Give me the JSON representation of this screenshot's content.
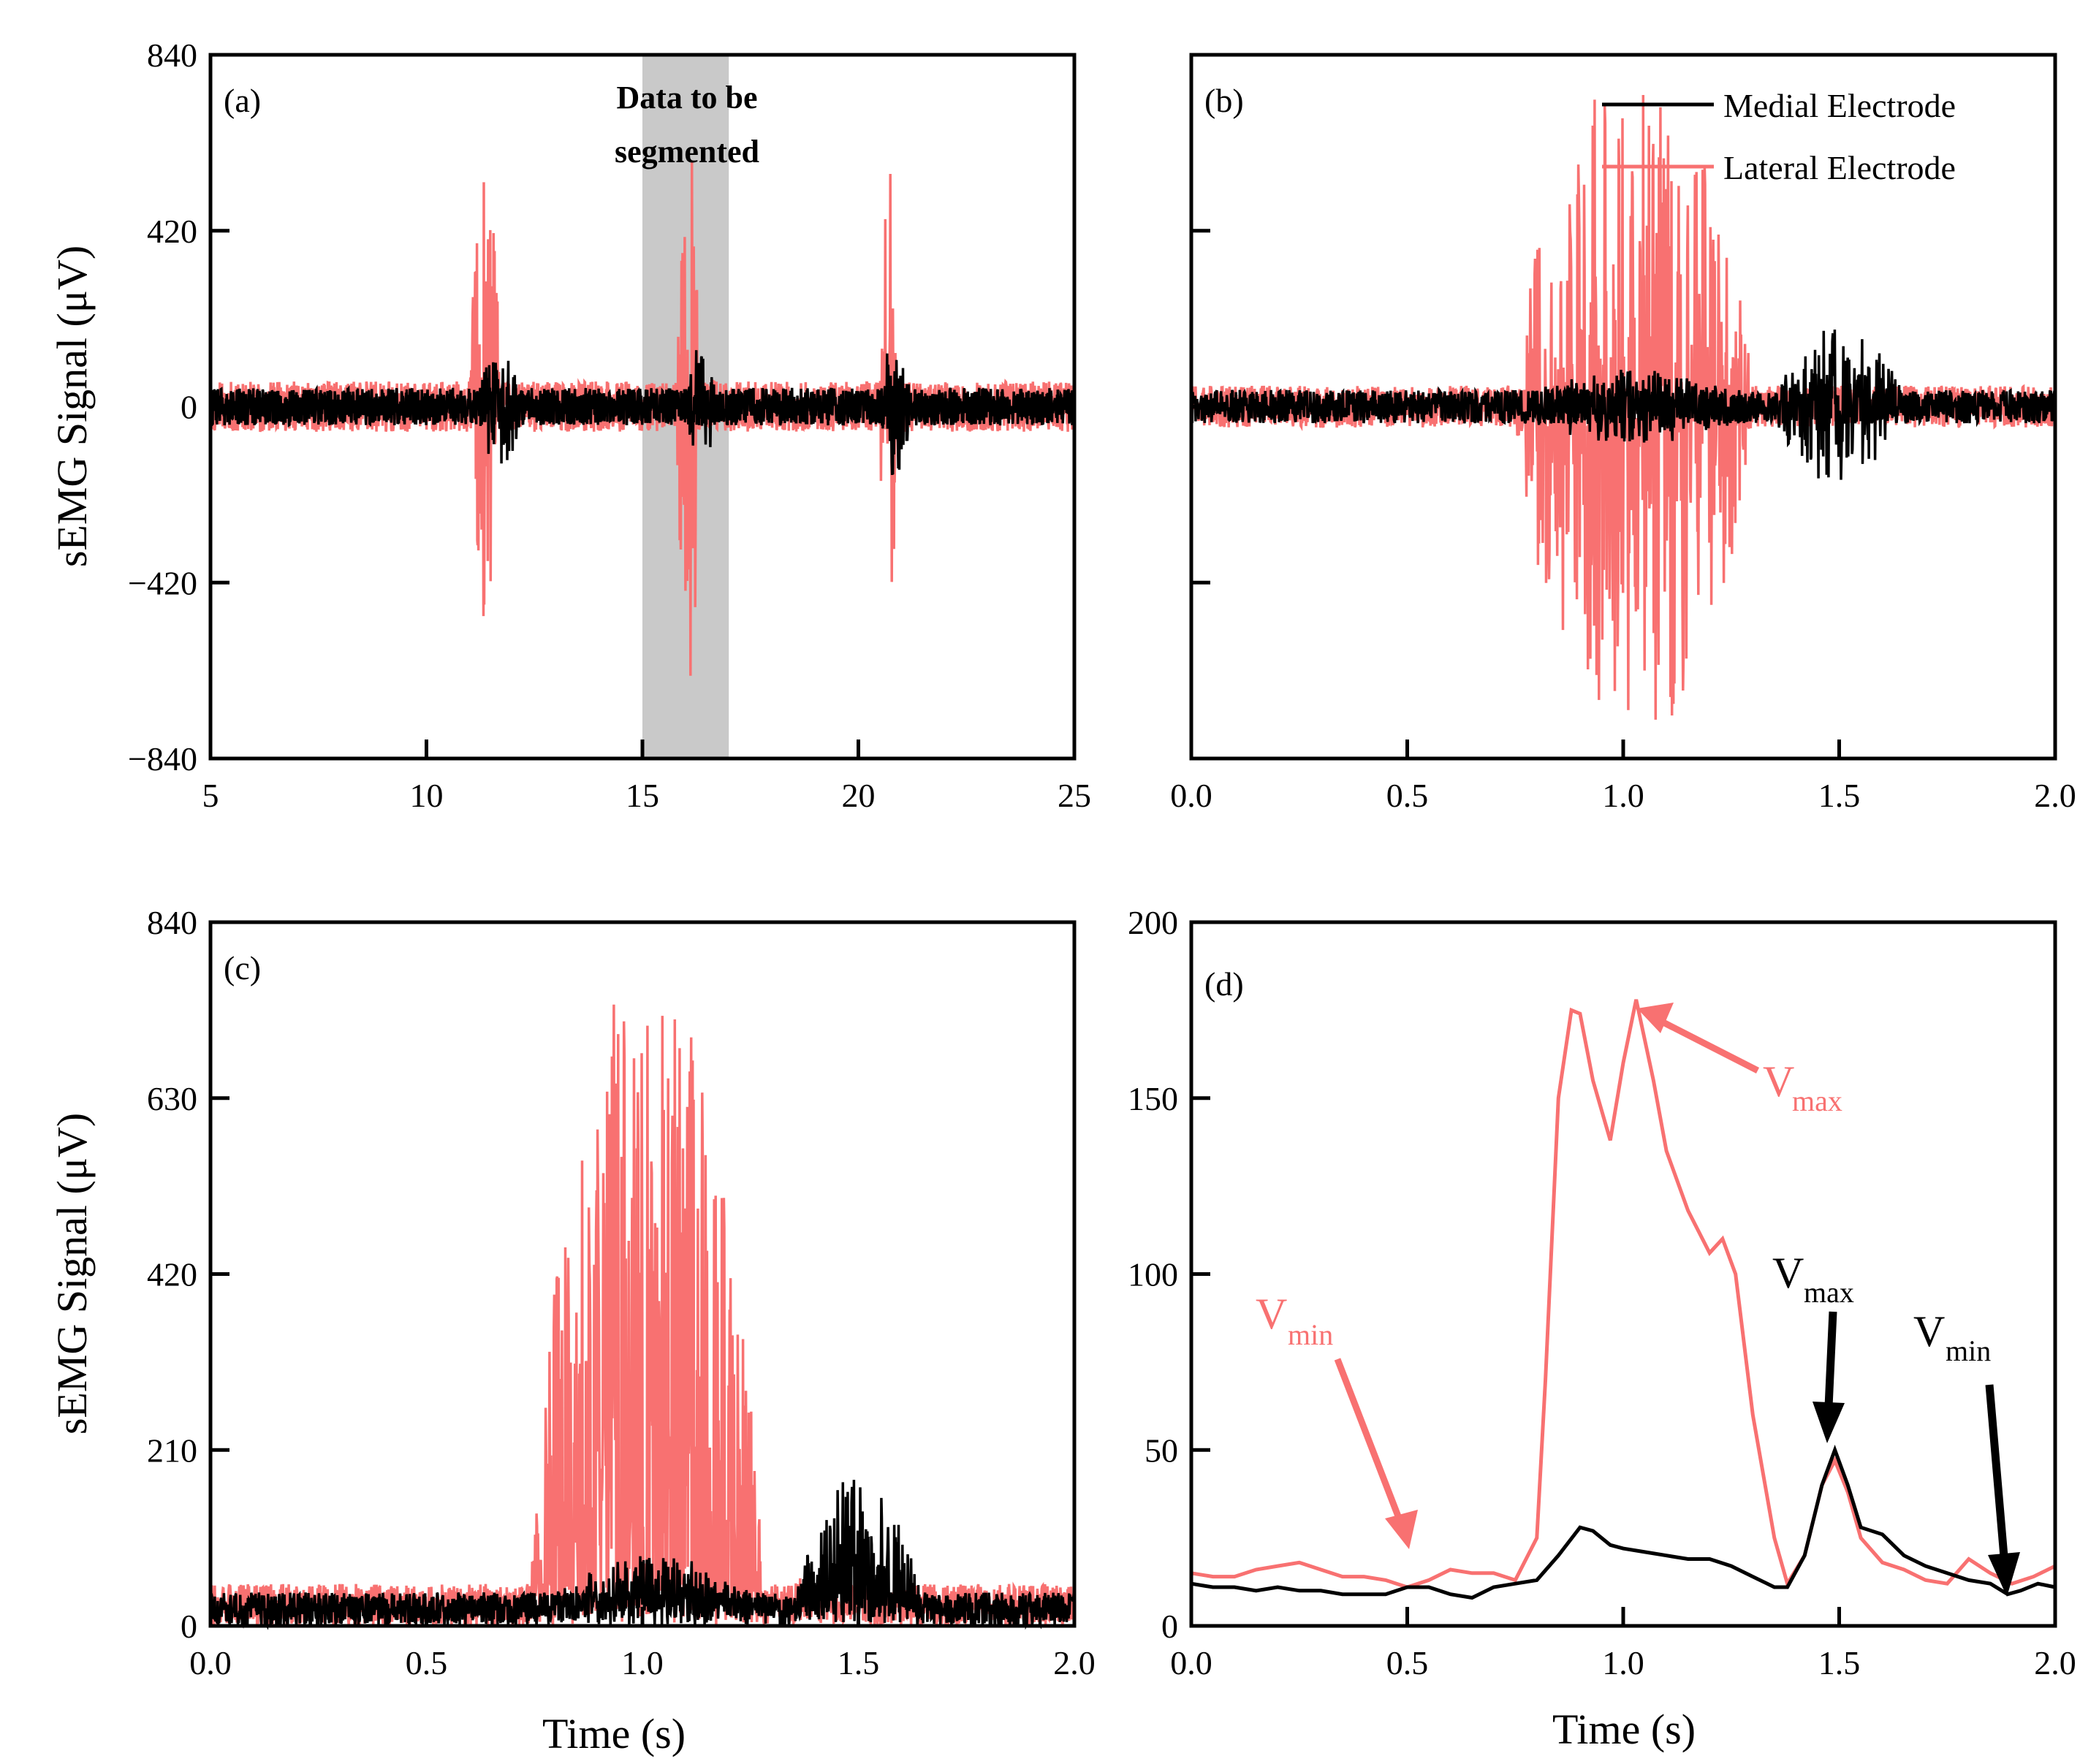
{
  "colors": {
    "medial": "#000000",
    "lateral": "#f87171",
    "shade": "#c9c9c9"
  },
  "legend": {
    "medial_label": "Medial Electrode",
    "lateral_label": "Lateral Electrode"
  },
  "axes": {
    "ylabel_top": "sEMG Signal (μV)",
    "ylabel_bottom": "sEMG Signal (μV)",
    "xlabel_c": "Time (s)",
    "xlabel_d": "Time (s)"
  },
  "panels": {
    "a": {
      "label": "(a)",
      "shade_note_line1": "Data to be",
      "shade_note_line2": "segmented",
      "xticks": [
        "5",
        "10",
        "15",
        "20",
        "25"
      ],
      "yticks": [
        "840",
        "420",
        "0",
        "−420",
        "−840"
      ]
    },
    "b": {
      "label": "(b)",
      "xticks": [
        "0.0",
        "0.5",
        "1.0",
        "1.5",
        "2.0"
      ]
    },
    "c": {
      "label": "(c)",
      "xticks": [
        "0.0",
        "0.5",
        "1.0",
        "1.5",
        "2.0"
      ],
      "yticks": [
        "840",
        "630",
        "420",
        "210",
        "0"
      ]
    },
    "d": {
      "label": "(d)",
      "xticks": [
        "0.0",
        "0.5",
        "1.0",
        "1.5",
        "2.0"
      ],
      "yticks": [
        "200",
        "150",
        "100",
        "50",
        "0"
      ],
      "annotations": {
        "lateral_vmax_main": "V",
        "lateral_vmax_sub": "max",
        "lateral_vmin_main": "V",
        "lateral_vmin_sub": "min",
        "medial_vmax_main": "V",
        "medial_vmax_sub": "max",
        "medial_vmin_main": "V",
        "medial_vmin_sub": "min"
      }
    }
  },
  "chart_data": [
    {
      "panel": "a",
      "type": "line",
      "xlim": [
        5,
        25
      ],
      "ylim": [
        -840,
        840
      ],
      "shaded_region": [
        15,
        17
      ],
      "series": [
        {
          "name": "Medial Electrode",
          "noise_amplitude": 45,
          "bursts": [
            {
              "start": 11.2,
              "end": 12.2,
              "amplitude": 150
            },
            {
              "start": 16.0,
              "end": 16.7,
              "amplitude": 150
            },
            {
              "start": 20.5,
              "end": 21.2,
              "amplitude": 170
            }
          ]
        },
        {
          "name": "Lateral Electrode",
          "noise_amplitude": 60,
          "bursts": [
            {
              "start": 11.0,
              "end": 11.7,
              "amplitude": 590
            },
            {
              "start": 15.8,
              "end": 16.3,
              "amplitude": 800
            },
            {
              "start": 20.5,
              "end": 20.9,
              "amplitude": 580
            }
          ]
        }
      ]
    },
    {
      "panel": "b",
      "type": "line",
      "xlim": [
        0,
        2
      ],
      "ylim": [
        -840,
        840
      ],
      "series": [
        {
          "name": "Medial Electrode",
          "noise_amplitude": 40,
          "bursts": [
            {
              "start": 0.75,
              "end": 1.3,
              "amplitude": 90
            },
            {
              "start": 1.35,
              "end": 1.65,
              "amplitude": 190
            }
          ]
        },
        {
          "name": "Lateral Electrode",
          "noise_amplitude": 50,
          "bursts": [
            {
              "start": 0.75,
              "end": 1.3,
              "amplitude": 800
            }
          ]
        }
      ]
    },
    {
      "panel": "c",
      "type": "line",
      "xlim": [
        0,
        2
      ],
      "ylim": [
        0,
        840
      ],
      "series": [
        {
          "name": "Medial Electrode",
          "noise_amplitude": 40,
          "bursts": [
            {
              "start": 0.75,
              "end": 1.3,
              "amplitude": 85
            },
            {
              "start": 1.35,
              "end": 1.65,
              "amplitude": 180
            }
          ]
        },
        {
          "name": "Lateral Electrode",
          "noise_amplitude": 50,
          "bursts": [
            {
              "start": 0.74,
              "end": 1.28,
              "amplitude": 790
            },
            {
              "start": 1.3,
              "end": 1.45,
              "amplitude": 60
            }
          ]
        }
      ]
    },
    {
      "panel": "d",
      "type": "line",
      "xlim": [
        0,
        2
      ],
      "ylim": [
        0,
        200
      ],
      "series": [
        {
          "name": "Lateral Electrode",
          "x": [
            0.0,
            0.05,
            0.1,
            0.15,
            0.2,
            0.25,
            0.3,
            0.35,
            0.4,
            0.45,
            0.5,
            0.55,
            0.6,
            0.65,
            0.7,
            0.75,
            0.8,
            0.82,
            0.85,
            0.88,
            0.9,
            0.93,
            0.97,
            1.0,
            1.03,
            1.07,
            1.1,
            1.15,
            1.2,
            1.23,
            1.26,
            1.3,
            1.35,
            1.38,
            1.42,
            1.46,
            1.49,
            1.52,
            1.55,
            1.6,
            1.65,
            1.7,
            1.75,
            1.8,
            1.85,
            1.9,
            1.95,
            2.0
          ],
          "y": [
            15,
            14,
            14,
            16,
            17,
            18,
            16,
            14,
            14,
            13,
            11,
            13,
            16,
            15,
            15,
            13,
            25,
            70,
            150,
            175,
            174,
            155,
            138,
            160,
            178,
            155,
            135,
            118,
            106,
            110,
            100,
            60,
            25,
            12,
            20,
            40,
            47,
            38,
            25,
            18,
            16,
            13,
            12,
            19,
            15,
            12,
            14,
            17
          ]
        },
        {
          "name": "Medial Electrode",
          "x": [
            0.0,
            0.05,
            0.1,
            0.15,
            0.2,
            0.25,
            0.3,
            0.35,
            0.4,
            0.45,
            0.5,
            0.55,
            0.6,
            0.65,
            0.7,
            0.75,
            0.8,
            0.85,
            0.9,
            0.93,
            0.97,
            1.0,
            1.05,
            1.1,
            1.15,
            1.2,
            1.25,
            1.3,
            1.35,
            1.38,
            1.42,
            1.46,
            1.49,
            1.52,
            1.55,
            1.6,
            1.65,
            1.7,
            1.75,
            1.8,
            1.85,
            1.89,
            1.92,
            1.96,
            2.0
          ],
          "y": [
            12,
            11,
            11,
            10,
            11,
            10,
            10,
            9,
            9,
            9,
            11,
            11,
            9,
            8,
            11,
            12,
            13,
            20,
            28,
            27,
            23,
            22,
            21,
            20,
            19,
            19,
            17,
            14,
            11,
            11,
            20,
            40,
            50,
            40,
            28,
            26,
            20,
            17,
            15,
            13,
            12,
            9,
            10,
            12,
            11
          ]
        }
      ]
    }
  ]
}
